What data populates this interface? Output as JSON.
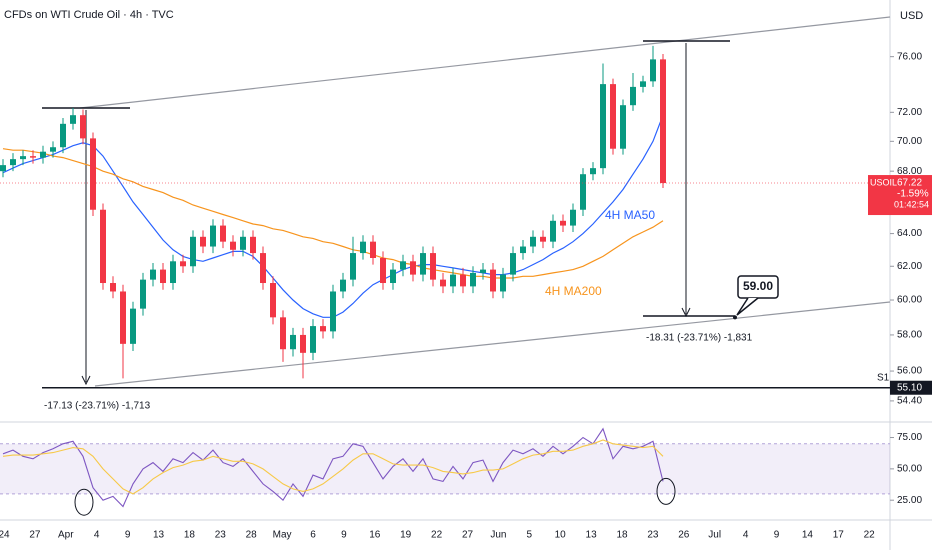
{
  "chart_data": {
    "type": "candlestick",
    "title": "CFDs on WTI Crude Oil · 4h · TVC",
    "currency": "USD",
    "log": true,
    "ylim": [
      53.4,
      80.3
    ],
    "yticks": [
      {
        "value": 76,
        "label": "76.00"
      },
      {
        "value": 72,
        "label": "72.00"
      },
      {
        "value": 70,
        "label": "70.00"
      },
      {
        "value": 68,
        "label": "68.00"
      },
      {
        "value": 64,
        "label": "64.00"
      },
      {
        "value": 62,
        "label": "62.00"
      },
      {
        "value": 60,
        "label": "60.00"
      },
      {
        "value": 58,
        "label": "58.00"
      },
      {
        "value": 56,
        "label": "56.00"
      },
      {
        "value": 54.4,
        "label": "54.40"
      }
    ],
    "up_color": "#089981",
    "down_color": "#f23645",
    "open": [
      68.0,
      68.4,
      68.8,
      69.0,
      68.9,
      69.3,
      69.6,
      71.2,
      71.8,
      70.2,
      65.5,
      61.0,
      60.5,
      57.5,
      59.5,
      61.2,
      61.8,
      61.0,
      62.3,
      62.0,
      63.8,
      63.2,
      64.5,
      63.5,
      63.0,
      63.8,
      62.8,
      61.0,
      59.0,
      57.2,
      58.0,
      57.0,
      58.5,
      58.2,
      60.5,
      61.2,
      62.8,
      63.5,
      62.5,
      61.0,
      61.8,
      62.3,
      61.5,
      62.8,
      61.2,
      60.8,
      61.5,
      60.8,
      61.6,
      61.8,
      60.5,
      61.5,
      62.8,
      63.2,
      63.8,
      63.5,
      64.8,
      64.5,
      65.5,
      67.8,
      68.2,
      74.0,
      69.5,
      72.5,
      73.8,
      74.2,
      75.8
    ],
    "high": [
      68.8,
      69.2,
      69.4,
      69.4,
      69.7,
      70.0,
      71.6,
      72.3,
      72.2,
      70.6,
      65.9,
      61.4,
      60.9,
      59.9,
      61.6,
      62.2,
      62.2,
      62.7,
      62.7,
      64.2,
      64.2,
      64.9,
      64.9,
      63.9,
      64.2,
      64.2,
      63.2,
      61.4,
      59.4,
      58.4,
      58.4,
      58.9,
      58.9,
      60.9,
      61.6,
      63.8,
      63.9,
      63.9,
      62.9,
      62.2,
      62.7,
      62.7,
      63.2,
      63.2,
      61.6,
      61.9,
      61.9,
      62.0,
      62.2,
      62.2,
      61.9,
      63.2,
      63.6,
      64.2,
      64.2,
      65.2,
      65.2,
      65.9,
      68.2,
      68.6,
      75.5,
      74.4,
      72.9,
      74.8,
      74.6,
      76.8,
      76.2
    ],
    "low": [
      67.6,
      68.0,
      68.4,
      68.5,
      68.5,
      68.9,
      69.2,
      70.8,
      69.8,
      65.1,
      60.6,
      60.1,
      55.6,
      57.1,
      59.1,
      60.8,
      60.6,
      60.6,
      61.6,
      61.6,
      62.8,
      62.8,
      63.1,
      62.6,
      62.6,
      62.4,
      60.6,
      58.6,
      56.5,
      56.8,
      55.6,
      56.6,
      57.8,
      57.8,
      60.1,
      60.8,
      62.4,
      62.1,
      60.6,
      60.6,
      61.4,
      61.1,
      61.1,
      60.8,
      60.4,
      60.4,
      60.4,
      60.4,
      61.2,
      60.1,
      60.1,
      61.1,
      62.4,
      62.8,
      63.1,
      63.1,
      64.1,
      64.1,
      65.1,
      67.4,
      67.8,
      69.1,
      69.1,
      72.1,
      73.4,
      73.8,
      66.9
    ],
    "close": [
      68.4,
      68.8,
      69.0,
      68.9,
      69.3,
      69.6,
      71.2,
      71.8,
      70.2,
      65.5,
      61.0,
      60.5,
      57.5,
      59.5,
      61.2,
      61.8,
      61.0,
      62.3,
      62.0,
      63.8,
      63.2,
      64.5,
      63.5,
      63.0,
      63.8,
      62.8,
      61.0,
      59.0,
      57.2,
      58.0,
      57.0,
      58.5,
      58.2,
      60.5,
      61.2,
      62.8,
      63.5,
      62.5,
      61.0,
      61.8,
      62.3,
      61.5,
      62.8,
      61.2,
      60.8,
      61.5,
      60.8,
      61.6,
      61.8,
      60.5,
      61.5,
      62.8,
      63.2,
      63.8,
      63.5,
      64.8,
      64.5,
      65.5,
      67.8,
      68.2,
      74.0,
      69.5,
      72.5,
      73.8,
      74.2,
      75.8,
      67.22
    ],
    "series": [
      {
        "name": "4H MA50",
        "color": "#2962ff",
        "values": [
          67.9,
          68.2,
          68.5,
          68.7,
          68.9,
          69.1,
          69.4,
          69.7,
          69.9,
          69.7,
          69.0,
          68.0,
          67.0,
          66.0,
          65.2,
          64.4,
          63.6,
          63.0,
          62.6,
          62.4,
          62.3,
          62.5,
          62.7,
          62.9,
          62.9,
          62.6,
          62.0,
          61.3,
          60.6,
          60.0,
          59.5,
          59.2,
          59.0,
          59.0,
          59.3,
          59.8,
          60.4,
          60.9,
          61.2,
          61.5,
          61.8,
          62.0,
          62.1,
          62.1,
          62.0,
          61.9,
          61.8,
          61.7,
          61.6,
          61.5,
          61.5,
          61.6,
          61.8,
          62.1,
          62.4,
          62.8,
          63.1,
          63.5,
          64.0,
          64.6,
          65.3,
          66.0,
          66.8,
          67.8,
          68.8,
          70.0,
          71.8
        ]
      },
      {
        "name": "4H MA200",
        "color": "#f7941d",
        "values": [
          69.5,
          69.4,
          69.4,
          69.3,
          69.2,
          69.0,
          68.9,
          68.7,
          68.5,
          68.3,
          68.0,
          67.8,
          67.5,
          67.3,
          67.0,
          66.8,
          66.6,
          66.3,
          66.1,
          65.8,
          65.6,
          65.4,
          65.2,
          65.0,
          64.8,
          64.6,
          64.5,
          64.3,
          64.2,
          64.0,
          63.8,
          63.7,
          63.5,
          63.4,
          63.2,
          63.0,
          62.9,
          62.7,
          62.5,
          62.4,
          62.2,
          62.1,
          61.9,
          61.8,
          61.7,
          61.6,
          61.5,
          61.4,
          61.4,
          61.3,
          61.3,
          61.3,
          61.4,
          61.4,
          61.5,
          61.6,
          61.7,
          61.8,
          62.0,
          62.3,
          62.6,
          63.0,
          63.4,
          63.8,
          64.1,
          64.4,
          64.8
        ]
      }
    ],
    "x_labels": [
      "24",
      "27",
      "Apr",
      "4",
      "9",
      "13",
      "18",
      "23",
      "28",
      "May",
      "6",
      "9",
      "16",
      "19",
      "22",
      "27",
      "Jun",
      "5",
      "10",
      "13",
      "18",
      "23",
      "26",
      "Jul",
      "4",
      "9",
      "14",
      "17",
      "22"
    ],
    "price_tag": {
      "symbol": "USOIL",
      "value_label": "67.22",
      "change": "-1.59%",
      "countdown": "01:42:54"
    },
    "support": {
      "label": "S1",
      "value": 55.1,
      "value_label": "55.10"
    },
    "target": {
      "value": 59,
      "label": "59.00"
    },
    "measure_1": "-17.13 (-23.71%) -1,713",
    "measure_2": "-18.31 (-23.71%) -1,831",
    "rsi": {
      "ylim": [
        10.8,
        85.8
      ],
      "yticks": [
        {
          "value": 75,
          "label": "75.00"
        },
        {
          "value": 50,
          "label": "50.00"
        },
        {
          "value": 25,
          "label": "25.00"
        }
      ],
      "band": [
        70,
        30
      ],
      "series": [
        {
          "color": "#7e57c2",
          "values": [
            62,
            65,
            60,
            58,
            63,
            66,
            70,
            72,
            60,
            35,
            25,
            28,
            20,
            38,
            50,
            55,
            48,
            58,
            55,
            63,
            57,
            65,
            55,
            52,
            58,
            48,
            38,
            32,
            25,
            38,
            28,
            45,
            42,
            58,
            60,
            70,
            68,
            55,
            42,
            52,
            58,
            48,
            58,
            42,
            40,
            52,
            42,
            55,
            57,
            40,
            55,
            65,
            62,
            66,
            60,
            68,
            62,
            68,
            75,
            70,
            82,
            58,
            68,
            66,
            68,
            72,
            40
          ]
        },
        {
          "color": "#f7c948",
          "values": [
            60,
            61,
            61,
            61,
            62,
            63,
            65,
            67,
            66,
            60,
            50,
            42,
            34,
            30,
            35,
            42,
            47,
            51,
            53,
            56,
            57,
            60,
            58,
            56,
            56,
            54,
            50,
            44,
            38,
            34,
            32,
            34,
            38,
            44,
            50,
            57,
            62,
            62,
            58,
            54,
            53,
            53,
            53,
            51,
            48,
            47,
            46,
            47,
            49,
            49,
            50,
            54,
            58,
            61,
            62,
            64,
            64,
            65,
            68,
            70,
            73,
            70,
            69,
            68,
            67,
            68,
            60
          ]
        }
      ]
    }
  }
}
